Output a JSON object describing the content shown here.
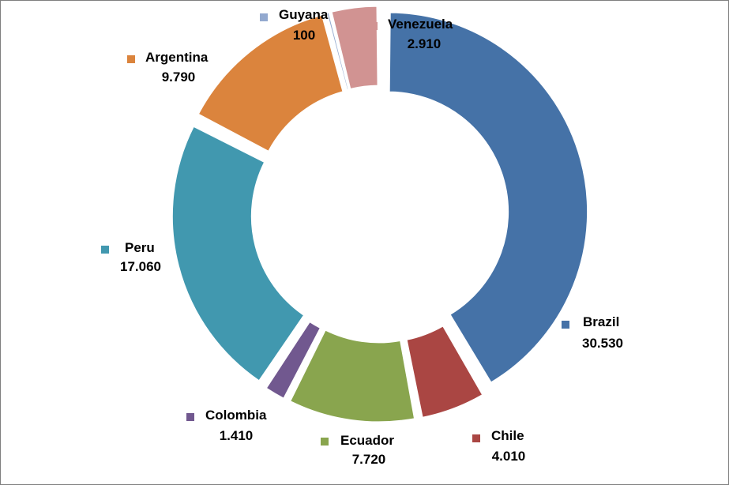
{
  "chart_data": {
    "type": "pie",
    "variant": "exploded-doughnut",
    "title": "",
    "series": [
      {
        "categories": [
          "Brazil",
          "Chile",
          "Ecuador",
          "Colombia",
          "Peru",
          "Argentina",
          "Guyana",
          "Venezuela"
        ],
        "values": [
          30530,
          4010,
          7720,
          1410,
          17060,
          9790,
          100,
          2910
        ],
        "value_labels": [
          "30.530",
          "4.010",
          "7.720",
          "1.410",
          "17.060",
          "9.790",
          "100",
          "2.910"
        ],
        "colors": [
          "#4572A7",
          "#AA4643",
          "#89A54E",
          "#71588F",
          "#4198AF",
          "#DB843D",
          "#93A9CF",
          "#D19392"
        ]
      }
    ],
    "legend_placement": "beside each slice"
  }
}
